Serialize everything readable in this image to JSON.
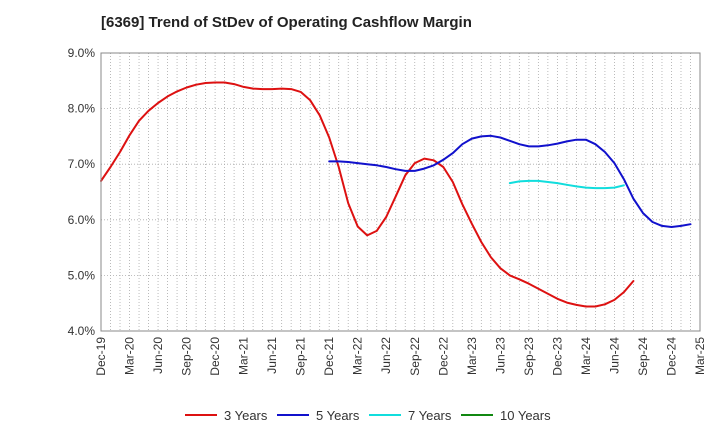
{
  "chart_data": {
    "type": "line",
    "title": "[6369]  Trend of StDev of Operating Cashflow Margin",
    "xlabel": "",
    "ylabel": "",
    "x_ticks": [
      "Dec-19",
      "Mar-20",
      "Jun-20",
      "Sep-20",
      "Dec-20",
      "Mar-21",
      "Jun-21",
      "Sep-21",
      "Dec-21",
      "Mar-22",
      "Jun-22",
      "Sep-22",
      "Dec-22",
      "Mar-23",
      "Jun-23",
      "Sep-23",
      "Dec-23",
      "Mar-24",
      "Jun-24",
      "Sep-24",
      "Dec-24",
      "Mar-25"
    ],
    "y_ticks": [
      "4.0%",
      "5.0%",
      "6.0%",
      "7.0%",
      "8.0%",
      "9.0%"
    ],
    "ylim": [
      4.0,
      9.0
    ],
    "grid": true,
    "legend_position": "bottom",
    "series": [
      {
        "name": "3 Years",
        "color": "#dd1111",
        "points": [
          [
            "Dec-19",
            6.7
          ],
          [
            "Jan-20",
            6.95
          ],
          [
            "Feb-20",
            7.22
          ],
          [
            "Mar-20",
            7.52
          ],
          [
            "Apr-20",
            7.78
          ],
          [
            "May-20",
            7.96
          ],
          [
            "Jun-20",
            8.1
          ],
          [
            "Jul-20",
            8.22
          ],
          [
            "Aug-20",
            8.31
          ],
          [
            "Sep-20",
            8.38
          ],
          [
            "Oct-20",
            8.43
          ],
          [
            "Nov-20",
            8.46
          ],
          [
            "Dec-20",
            8.47
          ],
          [
            "Jan-21",
            8.47
          ],
          [
            "Feb-21",
            8.44
          ],
          [
            "Mar-21",
            8.39
          ],
          [
            "Apr-21",
            8.36
          ],
          [
            "May-21",
            8.35
          ],
          [
            "Jun-21",
            8.35
          ],
          [
            "Jul-21",
            8.36
          ],
          [
            "Aug-21",
            8.35
          ],
          [
            "Sep-21",
            8.3
          ],
          [
            "Oct-21",
            8.15
          ],
          [
            "Nov-21",
            7.88
          ],
          [
            "Dec-21",
            7.48
          ],
          [
            "Jan-22",
            6.95
          ],
          [
            "Feb-22",
            6.3
          ],
          [
            "Mar-22",
            5.88
          ],
          [
            "Apr-22",
            5.72
          ],
          [
            "May-22",
            5.8
          ],
          [
            "Jun-22",
            6.05
          ],
          [
            "Jul-22",
            6.42
          ],
          [
            "Aug-22",
            6.8
          ],
          [
            "Sep-22",
            7.02
          ],
          [
            "Oct-22",
            7.1
          ],
          [
            "Nov-22",
            7.07
          ],
          [
            "Dec-22",
            6.95
          ],
          [
            "Jan-23",
            6.68
          ],
          [
            "Feb-23",
            6.28
          ],
          [
            "Mar-23",
            5.93
          ],
          [
            "Apr-23",
            5.6
          ],
          [
            "May-23",
            5.33
          ],
          [
            "Jun-23",
            5.13
          ],
          [
            "Jul-23",
            5.0
          ],
          [
            "Aug-23",
            4.93
          ],
          [
            "Sep-23",
            4.85
          ],
          [
            "Oct-23",
            4.76
          ],
          [
            "Nov-23",
            4.67
          ],
          [
            "Dec-23",
            4.58
          ],
          [
            "Jan-24",
            4.51
          ],
          [
            "Feb-24",
            4.47
          ],
          [
            "Mar-24",
            4.44
          ],
          [
            "Apr-24",
            4.44
          ],
          [
            "May-24",
            4.48
          ],
          [
            "Jun-24",
            4.56
          ],
          [
            "Jul-24",
            4.7
          ],
          [
            "Aug-24",
            4.9
          ]
        ]
      },
      {
        "name": "5 Years",
        "color": "#1111cc",
        "points": [
          [
            "Dec-21",
            7.05
          ],
          [
            "Jan-22",
            7.05
          ],
          [
            "Feb-22",
            7.04
          ],
          [
            "Mar-22",
            7.02
          ],
          [
            "Apr-22",
            7.0
          ],
          [
            "May-22",
            6.98
          ],
          [
            "Jun-22",
            6.95
          ],
          [
            "Jul-22",
            6.91
          ],
          [
            "Aug-22",
            6.88
          ],
          [
            "Sep-22",
            6.88
          ],
          [
            "Oct-22",
            6.92
          ],
          [
            "Nov-22",
            6.98
          ],
          [
            "Dec-22",
            7.08
          ],
          [
            "Jan-23",
            7.2
          ],
          [
            "Feb-23",
            7.36
          ],
          [
            "Mar-23",
            7.46
          ],
          [
            "Apr-23",
            7.5
          ],
          [
            "May-23",
            7.51
          ],
          [
            "Jun-23",
            7.48
          ],
          [
            "Jul-23",
            7.42
          ],
          [
            "Aug-23",
            7.36
          ],
          [
            "Sep-23",
            7.32
          ],
          [
            "Oct-23",
            7.32
          ],
          [
            "Nov-23",
            7.34
          ],
          [
            "Dec-23",
            7.37
          ],
          [
            "Jan-24",
            7.41
          ],
          [
            "Feb-24",
            7.44
          ],
          [
            "Mar-24",
            7.44
          ],
          [
            "Apr-24",
            7.36
          ],
          [
            "May-24",
            7.22
          ],
          [
            "Jun-24",
            7.02
          ],
          [
            "Jul-24",
            6.73
          ],
          [
            "Aug-24",
            6.38
          ],
          [
            "Sep-24",
            6.12
          ],
          [
            "Oct-24",
            5.96
          ],
          [
            "Nov-24",
            5.89
          ],
          [
            "Dec-24",
            5.87
          ],
          [
            "Jan-25",
            5.89
          ],
          [
            "Feb-25",
            5.92
          ]
        ]
      },
      {
        "name": "7 Years",
        "color": "#11dddd",
        "points": [
          [
            "Jul-23",
            6.66
          ],
          [
            "Aug-23",
            6.69
          ],
          [
            "Sep-23",
            6.7
          ],
          [
            "Oct-23",
            6.7
          ],
          [
            "Nov-23",
            6.68
          ],
          [
            "Dec-23",
            6.66
          ],
          [
            "Jan-24",
            6.63
          ],
          [
            "Feb-24",
            6.6
          ],
          [
            "Mar-24",
            6.58
          ],
          [
            "Apr-24",
            6.57
          ],
          [
            "May-24",
            6.57
          ],
          [
            "Jun-24",
            6.58
          ],
          [
            "Jul-24",
            6.62
          ]
        ]
      },
      {
        "name": "10 Years",
        "color": "#118811",
        "points": []
      }
    ]
  }
}
